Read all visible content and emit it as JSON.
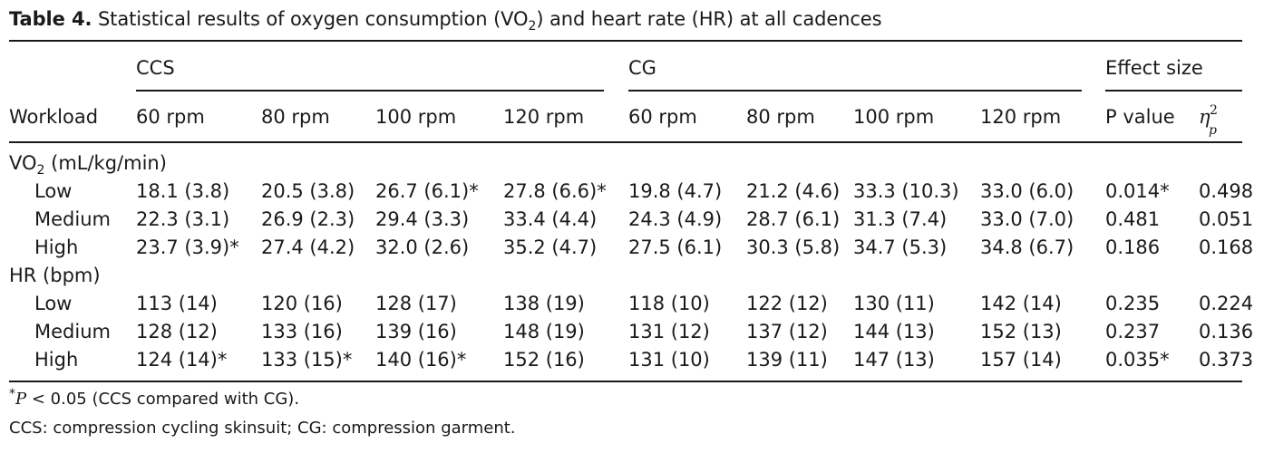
{
  "caption": {
    "label": "Table 4.",
    "text_a": "Statistical results of oxygen consumption (VO",
    "text_sub": "2",
    "text_b": ") and heart rate (HR) at all cadences"
  },
  "groups": [
    "CCS",
    "CG",
    "Effect size"
  ],
  "columns": {
    "workload": "Workload",
    "cadences": [
      "60 rpm",
      "80 rpm",
      "100 rpm",
      "120 rpm",
      "60 rpm",
      "80 rpm",
      "100 rpm",
      "120 rpm"
    ],
    "p_value": "P value",
    "eta_main": "η",
    "eta_sub": "p",
    "eta_sup": "2"
  },
  "sections": [
    {
      "label_a": "VO",
      "label_sub": "2",
      "label_b": " (mL/kg/min)",
      "rows": [
        {
          "label": "Low",
          "cells": [
            "18.1 (3.8)",
            "20.5 (3.8)",
            "26.7 (6.1)*",
            "27.8 (6.6)*",
            "19.8 (4.7)",
            "21.2 (4.6)",
            "33.3 (10.3)",
            "33.0 (6.0)",
            "0.014*",
            "0.498"
          ]
        },
        {
          "label": "Medium",
          "cells": [
            "22.3 (3.1)",
            "26.9 (2.3)",
            "29.4 (3.3)",
            "33.4 (4.4)",
            "24.3 (4.9)",
            "28.7 (6.1)",
            "31.3 (7.4)",
            "33.0 (7.0)",
            "0.481",
            "0.051"
          ]
        },
        {
          "label": "High",
          "cells": [
            "23.7 (3.9)*",
            "27.4 (4.2)",
            "32.0 (2.6)",
            "35.2 (4.7)",
            "27.5 (6.1)",
            "30.3 (5.8)",
            "34.7 (5.3)",
            "34.8 (6.7)",
            "0.186",
            "0.168"
          ]
        }
      ]
    },
    {
      "label_a": "HR (bpm)",
      "label_sub": "",
      "label_b": "",
      "rows": [
        {
          "label": "Low",
          "cells": [
            "113 (14)",
            "120 (16)",
            "128 (17)",
            "138 (19)",
            "118 (10)",
            "122 (12)",
            "130 (11)",
            "142 (14)",
            "0.235",
            "0.224"
          ]
        },
        {
          "label": "Medium",
          "cells": [
            "128 (12)",
            "133 (16)",
            "139 (16)",
            "148 (19)",
            "131 (12)",
            "137 (12)",
            "144 (13)",
            "152 (13)",
            "0.237",
            "0.136"
          ]
        },
        {
          "label": "High",
          "cells": [
            "124 (14)*",
            "133 (15)*",
            "140 (16)*",
            "152 (16)",
            "131 (10)",
            "139 (11)",
            "147 (13)",
            "157 (14)",
            "0.035*",
            "0.373"
          ]
        }
      ]
    }
  ],
  "footnotes": {
    "sig_star": "*",
    "sig_p": "P",
    "sig_rest": " < 0.05 (CCS compared with CG).",
    "abbrev": "CCS: compression cycling skinsuit; CG: compression garment."
  }
}
